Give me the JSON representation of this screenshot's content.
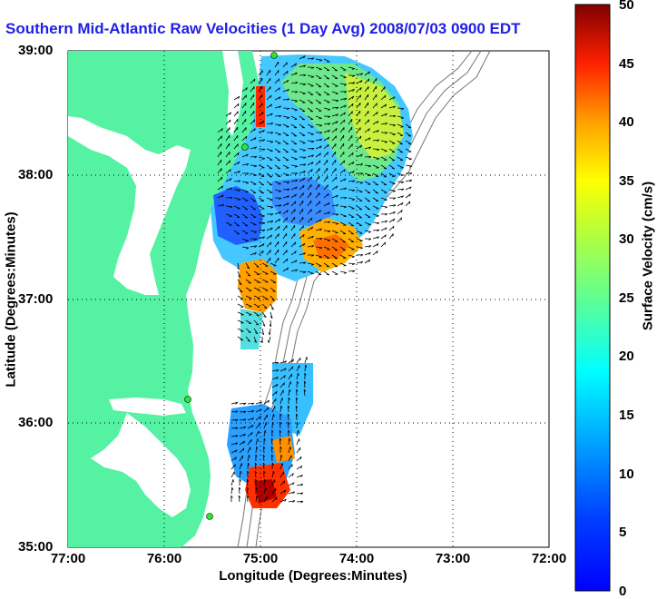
{
  "title": "Southern Mid-Atlantic Raw Velocities (1 Day Avg) 2008/07/03 0900 EDT",
  "x_axis": {
    "label": "Longitude (Degrees:Minutes)",
    "ticks": [
      "77:00",
      "76:00",
      "75:00",
      "74:00",
      "73:00",
      "72:00"
    ]
  },
  "y_axis": {
    "label": "Latitude (Degrees:Minutes)",
    "ticks": [
      "39:00",
      "38:00",
      "37:00",
      "36:00",
      "35:00"
    ]
  },
  "colorbar": {
    "label": "Surface Velocity (cm/s)",
    "ticks": [
      "50",
      "45",
      "40",
      "35",
      "30",
      "25",
      "20",
      "15",
      "10",
      "5",
      "0"
    ],
    "min": 0,
    "max": 50
  },
  "colors": {
    "title": "#1f1fe6",
    "land": "#54f2a2",
    "coast_marker": "#2de62d"
  },
  "chart_data": {
    "type": "heatmap",
    "title": "Southern Mid-Atlantic Raw Velocities (1 Day Avg) 2008/07/03 0900 EDT",
    "xlabel": "Longitude (Degrees:Minutes)",
    "ylabel": "Latitude (Degrees:Minutes)",
    "xlim": [
      -77,
      -72
    ],
    "ylim": [
      35,
      39
    ],
    "colorbar_range": [
      0,
      50
    ],
    "colorbar_label": "Surface Velocity (cm/s)",
    "grid": true
  }
}
